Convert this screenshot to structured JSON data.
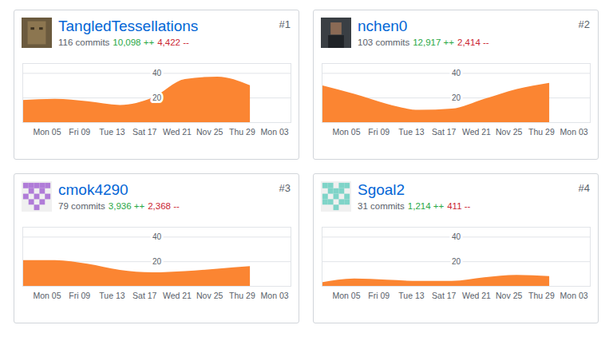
{
  "chart_data": [
    {
      "type": "area",
      "title": "TangledTessellations",
      "annotations": {
        "rank": "#1",
        "commits": "116 commits",
        "additions": "10,098 ++",
        "deletions": "4,422 --"
      },
      "x": [
        -3,
        1,
        5,
        9,
        13,
        17,
        21,
        25
      ],
      "values": [
        18,
        19,
        17,
        14,
        20,
        35,
        37,
        30
      ],
      "color": "#fb8532",
      "xlim": [
        -3,
        30
      ],
      "xticks": [
        {
          "value": 0,
          "label": "Mon 05"
        },
        {
          "value": 4,
          "label": "Fri 09"
        },
        {
          "value": 8,
          "label": "Tue 13"
        },
        {
          "value": 12,
          "label": "Sat 17"
        },
        {
          "value": 16,
          "label": "Wed 21"
        },
        {
          "value": 20,
          "label": "Nov 25"
        },
        {
          "value": 24,
          "label": "Thu 29"
        },
        {
          "value": 28,
          "label": "Mon 03"
        }
      ],
      "ylim": [
        0,
        48
      ],
      "yticks": [
        20,
        40
      ],
      "grid": true
    },
    {
      "type": "area",
      "title": "nchen0",
      "annotations": {
        "rank": "#2",
        "commits": "103 commits",
        "additions": "12,917 ++",
        "deletions": "2,414 --"
      },
      "x": [
        -3,
        1,
        5,
        9,
        13,
        17,
        21,
        25
      ],
      "values": [
        30,
        23,
        15,
        10,
        11,
        19,
        27,
        32
      ],
      "color": "#fb8532",
      "xlim": [
        -3,
        30
      ],
      "xticks": [
        {
          "value": 0,
          "label": "Mon 05"
        },
        {
          "value": 4,
          "label": "Fri 09"
        },
        {
          "value": 8,
          "label": "Tue 13"
        },
        {
          "value": 12,
          "label": "Sat 17"
        },
        {
          "value": 16,
          "label": "Wed 21"
        },
        {
          "value": 20,
          "label": "Nov 25"
        },
        {
          "value": 24,
          "label": "Thu 29"
        },
        {
          "value": 28,
          "label": "Mon 03"
        }
      ],
      "ylim": [
        0,
        48
      ],
      "yticks": [
        20,
        40
      ],
      "grid": true
    },
    {
      "type": "area",
      "title": "cmok4290",
      "annotations": {
        "rank": "#3",
        "commits": "79 commits",
        "additions": "3,936 ++",
        "deletions": "2,368 --"
      },
      "x": [
        -3,
        1,
        5,
        9,
        13,
        17,
        21,
        25
      ],
      "values": [
        21,
        21,
        18,
        13,
        11,
        12,
        14,
        16
      ],
      "color": "#fb8532",
      "xlim": [
        -3,
        30
      ],
      "xticks": [
        {
          "value": 0,
          "label": "Mon 05"
        },
        {
          "value": 4,
          "label": "Fri 09"
        },
        {
          "value": 8,
          "label": "Tue 13"
        },
        {
          "value": 12,
          "label": "Sat 17"
        },
        {
          "value": 16,
          "label": "Wed 21"
        },
        {
          "value": 20,
          "label": "Nov 25"
        },
        {
          "value": 24,
          "label": "Thu 29"
        },
        {
          "value": 28,
          "label": "Mon 03"
        }
      ],
      "ylim": [
        0,
        48
      ],
      "yticks": [
        20,
        40
      ],
      "grid": true
    },
    {
      "type": "area",
      "title": "Sgoal2",
      "annotations": {
        "rank": "#4",
        "commits": "31 commits",
        "additions": "1,214 ++",
        "deletions": "411 --"
      },
      "x": [
        -3,
        1,
        5,
        9,
        13,
        17,
        21,
        25
      ],
      "values": [
        3,
        6,
        5,
        4,
        4,
        7,
        9,
        8
      ],
      "color": "#fb8532",
      "xlim": [
        -3,
        30
      ],
      "xticks": [
        {
          "value": 0,
          "label": "Mon 05"
        },
        {
          "value": 4,
          "label": "Fri 09"
        },
        {
          "value": 8,
          "label": "Tue 13"
        },
        {
          "value": 12,
          "label": "Sat 17"
        },
        {
          "value": 16,
          "label": "Wed 21"
        },
        {
          "value": 20,
          "label": "Nov 25"
        },
        {
          "value": 24,
          "label": "Thu 29"
        },
        {
          "value": 28,
          "label": "Mon 03"
        }
      ],
      "ylim": [
        0,
        48
      ],
      "yticks": [
        20,
        40
      ],
      "grid": true
    }
  ]
}
